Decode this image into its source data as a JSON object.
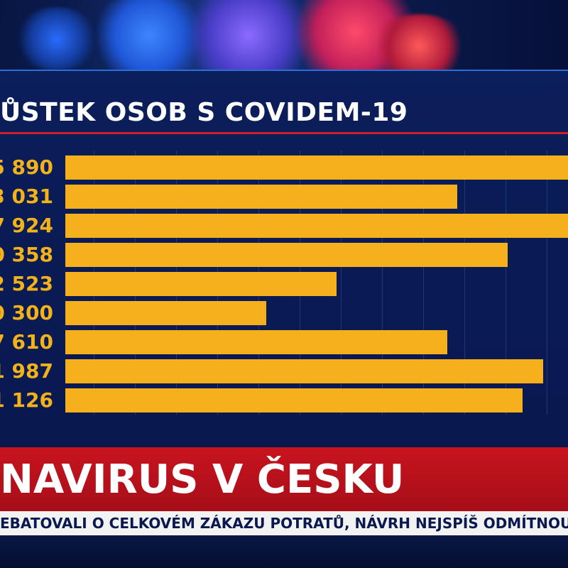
{
  "chart": {
    "title": "ŮSTEK OSOB S COVIDEM-19",
    "rows": [
      {
        "label": "5 890",
        "fraction": 1.0
      },
      {
        "label": "3 031",
        "fraction": 0.78
      },
      {
        "label": "7 924",
        "fraction": 1.0
      },
      {
        "label": "0 358",
        "fraction": 0.88
      },
      {
        "label": "2 523",
        "fraction": 0.54
      },
      {
        "label": "0 300",
        "fraction": 0.4
      },
      {
        "label": "7 610",
        "fraction": 0.76
      },
      {
        "label": "1 987",
        "fraction": 0.95
      },
      {
        "label": "1 126",
        "fraction": 0.91
      }
    ],
    "bar_color": "#f5b01c",
    "label_color": "#f4b21a"
  },
  "banner": {
    "text": "NAVIRUS V ČESKU"
  },
  "ticker": {
    "text": "EBATOVALI O CELKOVÉM ZÁKAZU POTRATŮ, NÁVRH NEJSPÍŠ ODMÍTNOU"
  }
}
